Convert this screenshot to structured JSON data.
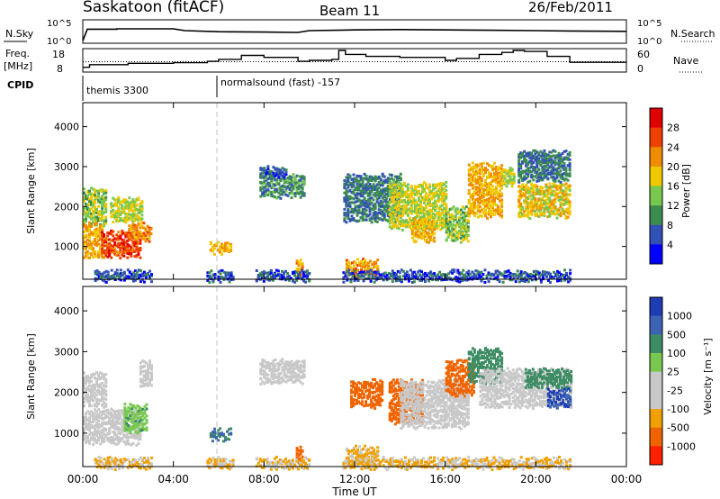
{
  "header": {
    "station": "Saskatoon (fitACF)",
    "beam": "Beam 11",
    "date": "26/Feb/2011"
  },
  "noise_panel": {
    "left_label": "N.Sky",
    "right_label": "N.Search",
    "left_ticks": [
      "10^5",
      "10^0"
    ],
    "right_ticks": [
      "10^5",
      "10^0"
    ]
  },
  "freq_panel": {
    "left_label_1": "Freq.",
    "left_label_2": "[MHz]",
    "right_label": "Nave",
    "left_ticks": [
      "18",
      "8"
    ],
    "right_ticks": [
      "60",
      "0"
    ]
  },
  "cpid_panel": {
    "label": "CPID",
    "programs": [
      {
        "name": "themis 3300",
        "start_hour": 0
      },
      {
        "name": "normalsound (fast) -157",
        "start_hour": 6
      }
    ]
  },
  "x_axis": {
    "label": "Time UT",
    "ticks": [
      "00:00",
      "04:00",
      "08:00",
      "12:00",
      "16:00",
      "20:00",
      "00:00"
    ],
    "tick_hours": [
      0,
      4,
      8,
      12,
      16,
      20,
      24
    ]
  },
  "power_panel": {
    "ylabel": "Slant Range [km]",
    "yticks": [
      "1000",
      "2000",
      "3000",
      "4000"
    ],
    "colorbar_label": "Power [dB]",
    "colorbar_ticks": [
      "4",
      "8",
      "12",
      "16",
      "20",
      "24",
      "28"
    ],
    "colors": [
      "#0000ff",
      "#3251b6",
      "#3c8c50",
      "#78c850",
      "#f0c800",
      "#f08c00",
      "#f04000",
      "#e00000"
    ]
  },
  "velocity_panel": {
    "ylabel": "Slant Range [km]",
    "yticks": [
      "1000",
      "2000",
      "3000",
      "4000"
    ],
    "colorbar_label": "Velocity [m s⁻¹]",
    "colorbar_ticks": [
      "1000",
      "500",
      "100",
      "25",
      "-25",
      "-100",
      "-500",
      "-1000"
    ],
    "colors": [
      "#1e3cb4",
      "#3c64b4",
      "#3c8c64",
      "#78c850",
      "#c8c8c8",
      "#c8c8c8",
      "#f0a000",
      "#f06400",
      "#ff2000"
    ]
  },
  "chart_data": {
    "type": "heatmap",
    "x_range_hours": [
      0,
      24
    ],
    "y_range_km": [
      180,
      4600
    ],
    "ground_scatter_color": "#c8c8c8",
    "noise_sky_log10": [
      [
        0,
        0.2
      ],
      [
        0.2,
        3.4
      ],
      [
        1.5,
        3.4
      ],
      [
        1.5,
        3.5
      ],
      [
        4.0,
        3.5
      ],
      [
        4.5,
        3.0
      ],
      [
        6.0,
        2.7
      ],
      [
        8.0,
        2.6
      ],
      [
        9.5,
        2.5
      ],
      [
        10.0,
        3.0
      ],
      [
        12.0,
        3.2
      ],
      [
        14.0,
        3.3
      ],
      [
        16.0,
        3.2
      ],
      [
        18.0,
        3.1
      ],
      [
        20.0,
        3.0
      ],
      [
        21.5,
        2.9
      ],
      [
        24.0,
        2.8
      ]
    ],
    "frequency_mhz": [
      [
        0,
        9.5
      ],
      [
        0.3,
        10.8
      ],
      [
        2.0,
        11.5
      ],
      [
        4.0,
        11.8
      ],
      [
        5.5,
        12.5
      ],
      [
        6.0,
        13.5
      ],
      [
        7.0,
        15.5
      ],
      [
        8.0,
        14.5
      ],
      [
        9.5,
        12.5
      ],
      [
        10.0,
        13.0
      ],
      [
        11.0,
        13.5
      ],
      [
        11.3,
        18.0
      ],
      [
        11.6,
        16.0
      ],
      [
        12.5,
        15.0
      ],
      [
        14.0,
        14.5
      ],
      [
        16.0,
        13.0
      ],
      [
        16.5,
        14.0
      ],
      [
        17.5,
        16.0
      ],
      [
        18.5,
        17.0
      ],
      [
        19.0,
        18.0
      ],
      [
        19.5,
        17.5
      ],
      [
        20.5,
        15.0
      ],
      [
        21.5,
        12.0
      ],
      [
        24.0,
        12.0
      ]
    ],
    "nave_mean": 26,
    "power_regions": [
      {
        "t": [
          0.0,
          1.0
        ],
        "r": [
          1600,
          2500
        ],
        "v": 14
      },
      {
        "t": [
          0.0,
          0.8
        ],
        "r": [
          800,
          1600
        ],
        "v": 20
      },
      {
        "t": [
          0.8,
          2.5
        ],
        "r": [
          800,
          1400
        ],
        "v": 26
      },
      {
        "t": [
          1.2,
          2.6
        ],
        "r": [
          1700,
          2200
        ],
        "v": 16
      },
      {
        "t": [
          2.0,
          3.0
        ],
        "r": [
          1200,
          1600
        ],
        "v": 22
      },
      {
        "t": [
          5.6,
          6.5
        ],
        "r": [
          900,
          1100
        ],
        "v": 20
      },
      {
        "t": [
          7.8,
          9.8
        ],
        "r": [
          2300,
          2800
        ],
        "v": 10
      },
      {
        "t": [
          7.8,
          9.0
        ],
        "r": [
          2800,
          3000
        ],
        "v": 6
      },
      {
        "t": [
          9.4,
          9.7
        ],
        "r": [
          300,
          700
        ],
        "v": 22
      },
      {
        "t": [
          11.6,
          13.0
        ],
        "r": [
          300,
          700
        ],
        "v": 22
      },
      {
        "t": [
          11.5,
          14.0
        ],
        "r": [
          1700,
          2800
        ],
        "v": 8
      },
      {
        "t": [
          13.5,
          16.0
        ],
        "r": [
          1500,
          2600
        ],
        "v": 16
      },
      {
        "t": [
          14.5,
          15.5
        ],
        "r": [
          1200,
          1700
        ],
        "v": 20
      },
      {
        "t": [
          16.0,
          17.0
        ],
        "r": [
          1200,
          2000
        ],
        "v": 14
      },
      {
        "t": [
          17.0,
          18.5
        ],
        "r": [
          1800,
          3100
        ],
        "v": 20
      },
      {
        "t": [
          18.5,
          19.0
        ],
        "r": [
          2600,
          3000
        ],
        "v": 16
      },
      {
        "t": [
          19.2,
          21.5
        ],
        "r": [
          1800,
          2600
        ],
        "v": 18
      },
      {
        "t": [
          19.2,
          21.5
        ],
        "r": [
          2700,
          3400
        ],
        "v": 8
      },
      {
        "t": [
          0.5,
          21.5
        ],
        "r": [
          200,
          400
        ],
        "v": 6
      }
    ],
    "velocity_regions": [
      {
        "t": [
          0.0,
          1.0
        ],
        "r": [
          1700,
          2500
        ],
        "v": -10,
        "ground": true
      },
      {
        "t": [
          0.0,
          2.5
        ],
        "r": [
          800,
          1600
        ],
        "v": 0,
        "ground": true
      },
      {
        "t": [
          1.8,
          2.8
        ],
        "r": [
          1100,
          1700
        ],
        "v": 60
      },
      {
        "t": [
          2.5,
          4.5
        ],
        "r": [
          2200,
          2800
        ],
        "v": 0,
        "ground": true
      },
      {
        "t": [
          5.6,
          6.5
        ],
        "r": [
          900,
          1100
        ],
        "v": 300
      },
      {
        "t": [
          7.8,
          9.8
        ],
        "r": [
          2300,
          2800
        ],
        "v": 0,
        "ground": true
      },
      {
        "t": [
          9.4,
          9.7
        ],
        "r": [
          300,
          700
        ],
        "v": -200
      },
      {
        "t": [
          11.6,
          13.0
        ],
        "r": [
          300,
          700
        ],
        "v": -40
      },
      {
        "t": [
          11.8,
          13.2
        ],
        "r": [
          1700,
          2300
        ],
        "v": -300
      },
      {
        "t": [
          13.5,
          15.0
        ],
        "r": [
          1300,
          2300
        ],
        "v": -250
      },
      {
        "t": [
          14.0,
          17.0
        ],
        "r": [
          1200,
          2300
        ],
        "v": 0,
        "ground": true
      },
      {
        "t": [
          16.0,
          17.2
        ],
        "r": [
          2000,
          2800
        ],
        "v": -300
      },
      {
        "t": [
          17.0,
          18.5
        ],
        "r": [
          2300,
          3100
        ],
        "v": 150
      },
      {
        "t": [
          17.5,
          21.5
        ],
        "r": [
          1700,
          2600
        ],
        "v": 0,
        "ground": true
      },
      {
        "t": [
          19.5,
          21.5
        ],
        "r": [
          2200,
          2600
        ],
        "v": 120
      },
      {
        "t": [
          20.5,
          21.5
        ],
        "r": [
          1700,
          2100
        ],
        "v": 700
      },
      {
        "t": [
          0.5,
          21.5
        ],
        "r": [
          200,
          400
        ],
        "v": -30
      }
    ],
    "data_gaps_hours": [
      [
        3.0,
        5.4
      ],
      [
        6.6,
        7.6
      ],
      [
        10.0,
        11.4
      ],
      [
        21.6,
        24.0
      ]
    ]
  }
}
